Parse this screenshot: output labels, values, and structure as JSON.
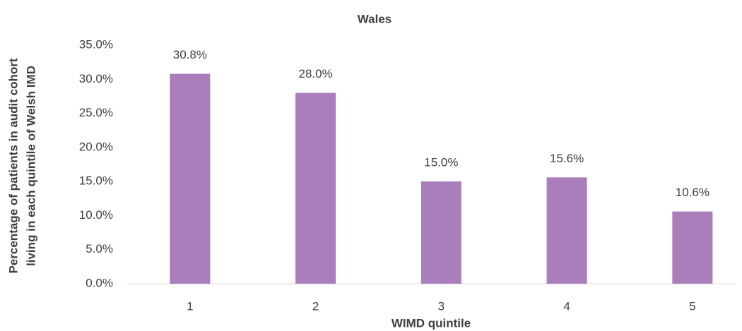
{
  "chart_data": {
    "type": "bar",
    "title": "Wales",
    "x_label": "WIMD quintile",
    "y_label": [
      "Percentage of patients in audit cohort",
      "living in each quintile of Welsh IMD"
    ],
    "categories": [
      "1",
      "2",
      "3",
      "4",
      "5"
    ],
    "values": [
      30.8,
      28.0,
      15.0,
      15.6,
      10.6
    ],
    "value_labels": [
      "30.8%",
      "28.0%",
      "15.0%",
      "15.6%",
      "10.6%"
    ],
    "color": "#a97ebb",
    "ylim": [
      0,
      35
    ],
    "yticks": [
      {
        "value": 0,
        "label": "0.0%"
      },
      {
        "value": 5,
        "label": "5.0%"
      },
      {
        "value": 10,
        "label": "10.0%"
      },
      {
        "value": 15,
        "label": "15.0%"
      },
      {
        "value": 20,
        "label": "20.0%"
      },
      {
        "value": 25,
        "label": "25.0%"
      },
      {
        "value": 30,
        "label": "30.0%"
      },
      {
        "value": 35,
        "label": "35.0%"
      }
    ],
    "grid": false
  }
}
